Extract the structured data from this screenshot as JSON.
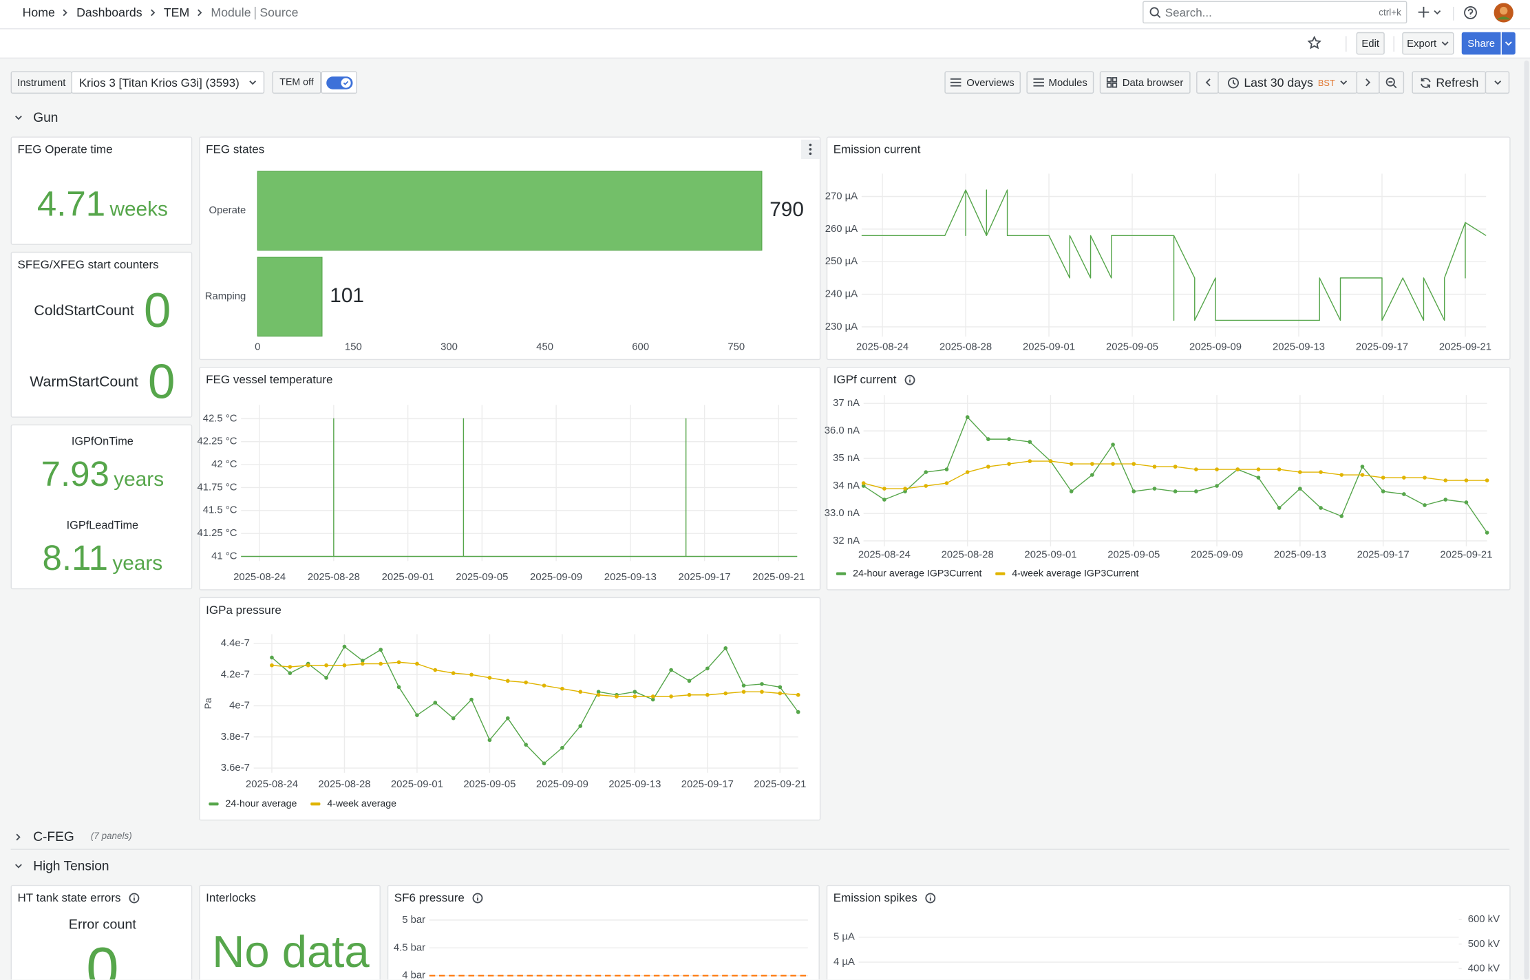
{
  "nav": {
    "breadcrumbs": [
      "Home",
      "Dashboards",
      "TEM"
    ],
    "current": "Module",
    "current_sub": "Source",
    "search_placeholder": "Search...",
    "search_shortcut": "ctrl+k"
  },
  "toolbar": {
    "edit": "Edit",
    "export": "Export",
    "share": "Share"
  },
  "controls": {
    "instrument_label": "Instrument",
    "instrument": "Krios 3 [Titan Krios G3i] (3593)",
    "tem_toggle": "TEM off",
    "views": [
      "Overviews",
      "Modules",
      "Data browser"
    ],
    "time_range": "Last 30 days",
    "timezone": "BST",
    "refresh": "Refresh"
  },
  "rows": [
    {
      "title": "Gun"
    },
    {
      "title": "C-FEG",
      "summary": "(7 panels)"
    },
    {
      "title": "High Tension"
    }
  ],
  "stats": {
    "feg_operate_time": {
      "title": "FEG Operate time",
      "value": 4.71,
      "unit": "weeks"
    },
    "start_counters": {
      "title": "SFEG/XFEG start counters",
      "items": [
        {
          "label": "ColdStartCount",
          "value": 0
        },
        {
          "label": "WarmStartCount",
          "value": 0
        }
      ]
    },
    "igpf_times": [
      {
        "label": "IGPfOnTime",
        "value": 7.93,
        "unit": "years"
      },
      {
        "label": "IGPfLeadTime",
        "value": 8.11,
        "unit": "years"
      }
    ],
    "ht_tank": {
      "title": "HT tank state errors",
      "label": "Error count",
      "value": 0
    },
    "interlocks": {
      "title": "Interlocks",
      "message": "No data"
    }
  },
  "chart_data": [
    {
      "type": "bar",
      "orientation": "horizontal",
      "title": "FEG states",
      "categories": [
        "Operate",
        "Ramping"
      ],
      "values": [
        790,
        101
      ],
      "color": "#73bf69",
      "xlim": [
        0,
        850
      ],
      "xticks": [
        0,
        150,
        300,
        450,
        600,
        750
      ]
    },
    {
      "type": "line",
      "title": "Emission current",
      "x": [
        "2025-08-23",
        "2025-08-27",
        "2025-08-28",
        "2025-08-28",
        "2025-08-28",
        "2025-08-29",
        "2025-08-29",
        "2025-08-29",
        "2025-08-30",
        "2025-08-30",
        "2025-09-01",
        "2025-09-02",
        "2025-09-02",
        "2025-09-03",
        "2025-09-03",
        "2025-09-04",
        "2025-09-04",
        "2025-09-07",
        "2025-09-07",
        "2025-09-07",
        "2025-09-08",
        "2025-09-08",
        "2025-09-09",
        "2025-09-09",
        "2025-09-14",
        "2025-09-14",
        "2025-09-15",
        "2025-09-15",
        "2025-09-17",
        "2025-09-17",
        "2025-09-18",
        "2025-09-19",
        "2025-09-19",
        "2025-09-20",
        "2025-09-20",
        "2025-09-21",
        "2025-09-21",
        "2025-09-21",
        "2025-09-22"
      ],
      "series": [
        {
          "color": "#56a64b",
          "values": [
            258,
            258,
            272,
            258,
            272,
            258,
            272,
            258,
            272,
            258,
            258,
            245,
            258,
            245,
            258,
            245,
            258,
            258,
            232,
            258,
            245,
            232,
            245,
            232,
            232,
            245,
            232,
            245,
            245,
            232,
            245,
            232,
            245,
            232,
            245,
            262,
            245,
            262,
            258
          ]
        }
      ],
      "xlim": [
        "2025-08-23",
        "2025-09-22"
      ],
      "xticks": [
        "2025-08-24",
        "2025-08-28",
        "2025-09-01",
        "2025-09-05",
        "2025-09-09",
        "2025-09-13",
        "2025-09-17",
        "2025-09-21"
      ],
      "ylim": [
        227,
        277
      ],
      "yticks": [
        {
          "value": 230,
          "label": "230 µA"
        },
        {
          "value": 240,
          "label": "240 µA"
        },
        {
          "value": 250,
          "label": "250 µA"
        },
        {
          "value": 260,
          "label": "260 µA"
        },
        {
          "value": 270,
          "label": "270 µA"
        }
      ],
      "grid": true
    },
    {
      "type": "line",
      "title": "FEG vessel temperature",
      "x": [
        "2025-08-23",
        "2025-08-28",
        "2025-08-28",
        "2025-08-28",
        "2025-08-28",
        "2025-08-28",
        "2025-09-04",
        "2025-09-04",
        "2025-09-04",
        "2025-09-04",
        "2025-09-04",
        "2025-09-16",
        "2025-09-16",
        "2025-09-16",
        "2025-09-22"
      ],
      "series": [
        {
          "color": "#56a64b",
          "values": [
            41,
            41,
            42.5,
            41,
            42.5,
            41,
            41,
            42.5,
            41,
            42.5,
            41,
            41,
            42.5,
            41,
            41
          ]
        }
      ],
      "xlim": [
        "2025-08-23",
        "2025-09-22"
      ],
      "xticks": [
        "2025-08-24",
        "2025-08-28",
        "2025-09-01",
        "2025-09-05",
        "2025-09-09",
        "2025-09-13",
        "2025-09-17",
        "2025-09-21"
      ],
      "ylim": [
        40.95,
        42.65
      ],
      "yticks": [
        {
          "value": 41,
          "label": "41 °C"
        },
        {
          "value": 41.25,
          "label": "41.25 °C"
        },
        {
          "value": 41.5,
          "label": "41.5 °C"
        },
        {
          "value": 41.75,
          "label": "41.75 °C"
        },
        {
          "value": 42,
          "label": "42 °C"
        },
        {
          "value": 42.25,
          "label": "42.25 °C"
        },
        {
          "value": 42.5,
          "label": "42.5 °C"
        }
      ],
      "grid": true
    },
    {
      "type": "line",
      "title": "IGPf current",
      "show_points": true,
      "legend": "bottom",
      "x": [
        "2025-08-23",
        "2025-08-24",
        "2025-08-25",
        "2025-08-26",
        "2025-08-27",
        "2025-08-28",
        "2025-08-29",
        "2025-08-30",
        "2025-08-31",
        "2025-09-01",
        "2025-09-02",
        "2025-09-03",
        "2025-09-04",
        "2025-09-05",
        "2025-09-06",
        "2025-09-07",
        "2025-09-08",
        "2025-09-09",
        "2025-09-10",
        "2025-09-11",
        "2025-09-12",
        "2025-09-13",
        "2025-09-14",
        "2025-09-15",
        "2025-09-16",
        "2025-09-17",
        "2025-09-18",
        "2025-09-19",
        "2025-09-20",
        "2025-09-21",
        "2025-09-22"
      ],
      "series": [
        {
          "name": "24-hour average IGP3Current",
          "color": "#56a64b",
          "values": [
            34.0,
            33.5,
            33.8,
            34.5,
            34.6,
            36.5,
            35.7,
            35.7,
            35.6,
            34.9,
            33.8,
            34.4,
            35.5,
            33.8,
            33.9,
            33.8,
            33.8,
            34.0,
            34.6,
            34.3,
            33.2,
            33.9,
            33.2,
            32.9,
            34.7,
            33.8,
            33.7,
            33.3,
            33.5,
            33.4,
            32.3
          ]
        },
        {
          "name": "4-week average IGP3Current",
          "color": "#e0b400",
          "values": [
            34.1,
            33.9,
            33.9,
            34.0,
            34.1,
            34.5,
            34.7,
            34.8,
            34.9,
            34.9,
            34.8,
            34.8,
            34.8,
            34.8,
            34.7,
            34.7,
            34.6,
            34.6,
            34.6,
            34.6,
            34.6,
            34.5,
            34.5,
            34.4,
            34.4,
            34.3,
            34.3,
            34.3,
            34.2,
            34.2,
            34.2
          ]
        }
      ],
      "xlim": [
        "2025-08-23",
        "2025-09-22"
      ],
      "xticks": [
        "2025-08-24",
        "2025-08-28",
        "2025-09-01",
        "2025-09-05",
        "2025-09-09",
        "2025-09-13",
        "2025-09-17",
        "2025-09-21"
      ],
      "ylim": [
        31.8,
        37.3
      ],
      "yticks": [
        {
          "value": 32,
          "label": "32 nA"
        },
        {
          "value": 33,
          "label": "33.0 nA"
        },
        {
          "value": 34,
          "label": "34 nA"
        },
        {
          "value": 35,
          "label": "35 nA"
        },
        {
          "value": 36,
          "label": "36.0 nA"
        },
        {
          "value": 37,
          "label": "37 nA"
        }
      ],
      "grid": true
    },
    {
      "type": "line",
      "title": "IGPa pressure",
      "y_label": "Pa",
      "show_points": true,
      "legend": "bottom",
      "x": [
        "2025-08-24",
        "2025-08-25",
        "2025-08-26",
        "2025-08-27",
        "2025-08-28",
        "2025-08-29",
        "2025-08-30",
        "2025-08-31",
        "2025-09-01",
        "2025-09-02",
        "2025-09-03",
        "2025-09-04",
        "2025-09-05",
        "2025-09-06",
        "2025-09-07",
        "2025-09-08",
        "2025-09-09",
        "2025-09-10",
        "2025-09-11",
        "2025-09-12",
        "2025-09-13",
        "2025-09-14",
        "2025-09-15",
        "2025-09-16",
        "2025-09-17",
        "2025-09-18",
        "2025-09-19",
        "2025-09-20",
        "2025-09-21",
        "2025-09-22"
      ],
      "series": [
        {
          "name": "24-hour average",
          "color": "#56a64b",
          "values": [
            4.31e-07,
            4.21e-07,
            4.27e-07,
            4.18e-07,
            4.38e-07,
            4.29e-07,
            4.36e-07,
            4.12e-07,
            3.94e-07,
            4.02e-07,
            3.92e-07,
            4.04e-07,
            3.78e-07,
            3.92e-07,
            3.75e-07,
            3.63e-07,
            3.73e-07,
            3.87e-07,
            4.09e-07,
            4.07e-07,
            4.09e-07,
            4.04e-07,
            4.23e-07,
            4.16e-07,
            4.24e-07,
            4.37e-07,
            4.13e-07,
            4.14e-07,
            4.12e-07,
            3.96e-07
          ]
        },
        {
          "name": "4-week average",
          "color": "#e0b400",
          "values": [
            4.26e-07,
            4.25e-07,
            4.26e-07,
            4.26e-07,
            4.26e-07,
            4.27e-07,
            4.27e-07,
            4.28e-07,
            4.27e-07,
            4.23e-07,
            4.21e-07,
            4.2e-07,
            4.18e-07,
            4.16e-07,
            4.15e-07,
            4.13e-07,
            4.11e-07,
            4.09e-07,
            4.07e-07,
            4.06e-07,
            4.06e-07,
            4.06e-07,
            4.06e-07,
            4.07e-07,
            4.07e-07,
            4.08e-07,
            4.09e-07,
            4.09e-07,
            4.08e-07,
            4.07e-07
          ]
        }
      ],
      "xlim": [
        "2025-08-23",
        "2025-09-22"
      ],
      "xticks": [
        "2025-08-24",
        "2025-08-28",
        "2025-09-01",
        "2025-09-05",
        "2025-09-09",
        "2025-09-13",
        "2025-09-17",
        "2025-09-21"
      ],
      "ylim": [
        3.57e-07,
        4.46e-07
      ],
      "yticks": [
        {
          "value": 3.6e-07,
          "label": "3.6e-7"
        },
        {
          "value": 3.8e-07,
          "label": "3.8e-7"
        },
        {
          "value": 4e-07,
          "label": "4e-7"
        },
        {
          "value": 4.2e-07,
          "label": "4.2e-7"
        },
        {
          "value": 4.4e-07,
          "label": "4.4e-7"
        }
      ],
      "grid": true
    },
    {
      "type": "line",
      "title": "SF6 pressure",
      "ylim": [
        3.93,
        5.14
      ],
      "yticks": [
        {
          "value": 4,
          "label": "4 bar"
        },
        {
          "value": 4.5,
          "label": "4.5 bar"
        },
        {
          "value": 5,
          "label": "5 bar"
        }
      ],
      "threshold": {
        "value": 4,
        "color": "#ff780a"
      },
      "grid": true
    },
    {
      "type": "line",
      "title": "Emission spikes",
      "ylim": [
        3.3,
        6
      ],
      "yticks": [
        {
          "value": 4,
          "label": "4 µA"
        },
        {
          "value": 5,
          "label": "5 µA"
        }
      ],
      "y2lim": [
        355,
        630
      ],
      "y2ticks": [
        {
          "value": 400,
          "label": "400 kV"
        },
        {
          "value": 500,
          "label": "500 kV"
        },
        {
          "value": 600,
          "label": "600 kV"
        }
      ],
      "grid": true
    }
  ]
}
